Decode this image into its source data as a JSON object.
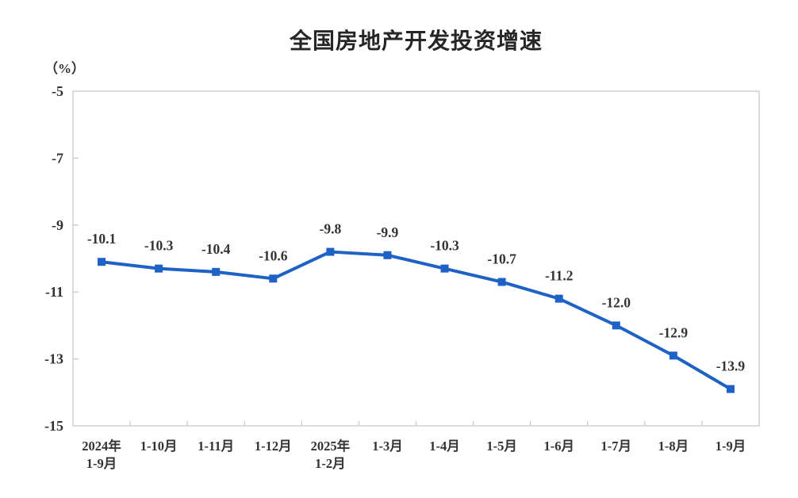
{
  "chart_data": {
    "type": "line",
    "title": "全国房地产开发投资增速",
    "unit_label": "（%）",
    "categories": [
      "2024年\n1-9月",
      "1-10月",
      "1-11月",
      "1-12月",
      "2025年\n1-2月",
      "1-3月",
      "1-4月",
      "1-5月",
      "1-6月",
      "1-7月",
      "1-8月",
      "1-9月"
    ],
    "values": [
      -10.1,
      -10.3,
      -10.4,
      -10.6,
      -9.8,
      -9.9,
      -10.3,
      -10.7,
      -11.2,
      -12.0,
      -12.9,
      -13.9
    ],
    "data_labels": [
      "-10.1",
      "-10.3",
      "-10.4",
      "-10.6",
      "-9.8",
      "-9.9",
      "-10.3",
      "-10.7",
      "-11.2",
      "-12.0",
      "-12.9",
      "-13.9"
    ],
    "ylim": [
      -15,
      -5
    ],
    "yticks": [
      -5,
      -7,
      -9,
      -11,
      -13,
      -15
    ],
    "xlabel": "",
    "ylabel": "（%）",
    "grid": false,
    "legend_position": "none",
    "marker": "square",
    "colors": {
      "line": "#1E62C6",
      "marker": "#1E62C6",
      "axis": "#c9c9c9",
      "text": "#333333",
      "title": "#262626"
    }
  }
}
